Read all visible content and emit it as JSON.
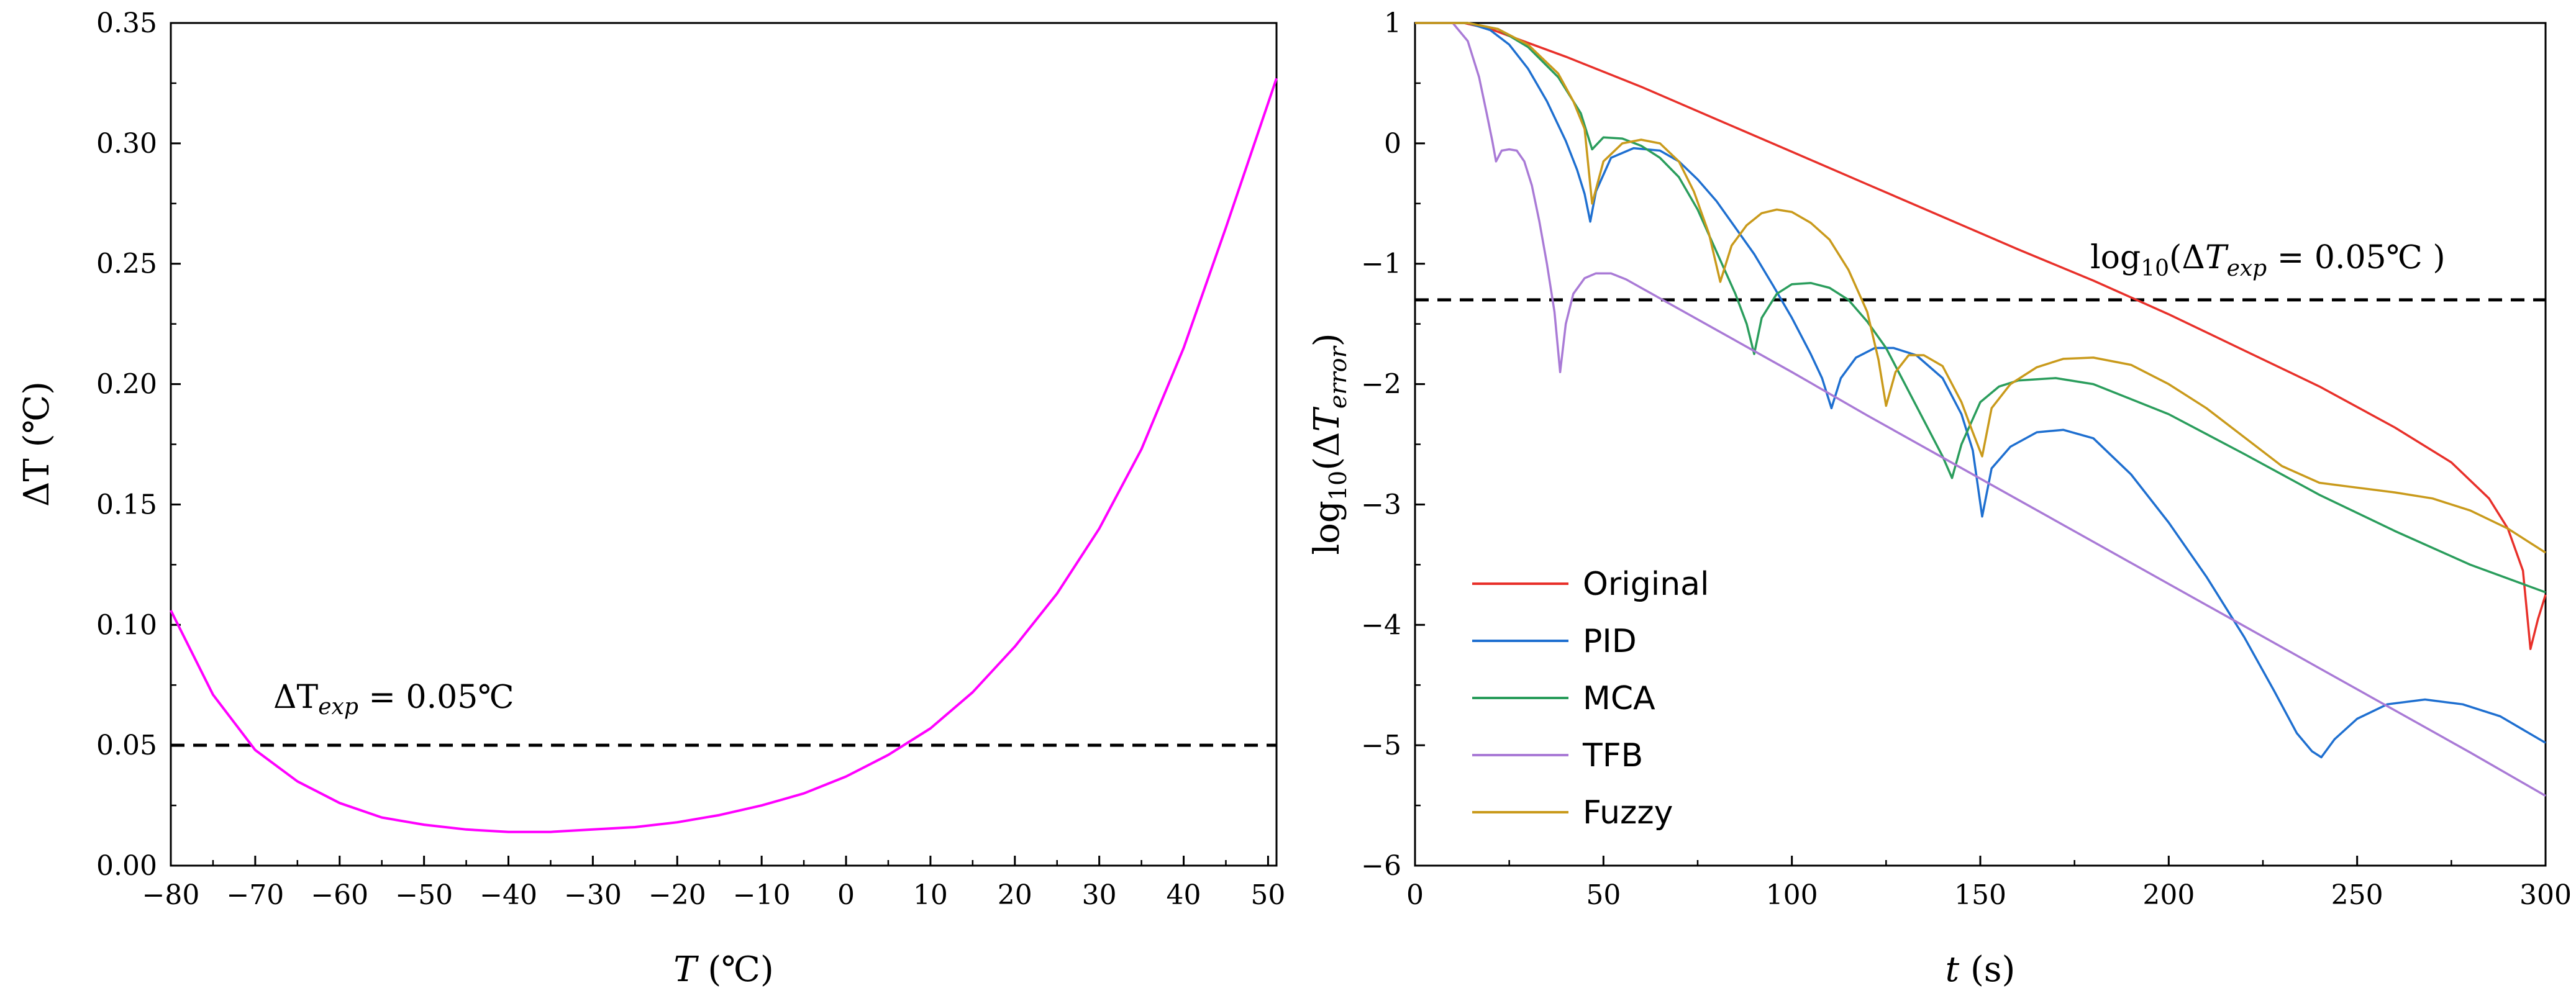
{
  "chart_data": [
    {
      "type": "line",
      "xlabel": {
        "var": "T",
        "unit": "(℃)"
      },
      "ylabel": {
        "var": "ΔT",
        "unit": "(℃)"
      },
      "xlim": [
        -80,
        51
      ],
      "ylim": [
        0,
        0.35
      ],
      "xticks": [
        -80,
        -70,
        -60,
        -50,
        -40,
        -30,
        -20,
        -10,
        0,
        10,
        20,
        30,
        40,
        50
      ],
      "xtick_labels": [
        "−80",
        "−70",
        "−60",
        "−50",
        "−40",
        "−30",
        "−20",
        "−10",
        "0",
        "10",
        "20",
        "30",
        "40",
        "50"
      ],
      "yticks": [
        0,
        0.05,
        0.1,
        0.15,
        0.2,
        0.25,
        0.3,
        0.35
      ],
      "ytick_labels": [
        "0.00",
        "0.05",
        "0.10",
        "0.15",
        "0.20",
        "0.25",
        "0.30",
        "0.35"
      ],
      "series": [
        {
          "name": "ΔT",
          "color": "#ff00ff",
          "x": [
            -80,
            -75,
            -70,
            -65,
            -60,
            -55,
            -50,
            -45,
            -40,
            -35,
            -30,
            -25,
            -20,
            -15,
            -10,
            -5,
            0,
            5,
            10,
            15,
            20,
            25,
            30,
            35,
            40,
            45,
            51
          ],
          "y": [
            0.106,
            0.071,
            0.048,
            0.035,
            0.026,
            0.02,
            0.017,
            0.015,
            0.014,
            0.014,
            0.015,
            0.016,
            0.018,
            0.021,
            0.025,
            0.03,
            0.037,
            0.046,
            0.057,
            0.072,
            0.091,
            0.113,
            0.14,
            0.173,
            0.215,
            0.265,
            0.327
          ]
        }
      ],
      "hlines": [
        {
          "y": 0.05,
          "color": "#000000",
          "style": "dashed"
        }
      ],
      "annotation": {
        "prefix": "ΔT",
        "sub": "exp",
        "suffix": " = 0.05℃"
      }
    },
    {
      "type": "line",
      "xlabel": {
        "var": "t",
        "unit": "(s)"
      },
      "ylabel": {
        "prefix": "log",
        "sub": "10",
        "open": "(Δ",
        "var": "T",
        "varsub": "error",
        "close": ")"
      },
      "xlim": [
        0,
        300
      ],
      "ylim": [
        -6,
        1
      ],
      "xticks": [
        0,
        50,
        100,
        150,
        200,
        250,
        300
      ],
      "xtick_labels": [
        "0",
        "50",
        "100",
        "150",
        "200",
        "250",
        "300"
      ],
      "yticks": [
        1,
        0,
        -1,
        -2,
        -3,
        -4,
        -5,
        -6
      ],
      "ytick_labels": [
        "1",
        "0",
        "−1",
        "−2",
        "−3",
        "−4",
        "−5",
        "−6"
      ],
      "series": [
        {
          "name": "Original",
          "color": "#e8302a",
          "x": [
            0,
            13,
            20,
            40,
            60,
            80,
            100,
            120,
            140,
            160,
            180,
            200,
            220,
            240,
            260,
            275,
            285,
            290,
            294,
            296,
            298,
            300
          ],
          "y": [
            1,
            1,
            0.95,
            0.72,
            0.47,
            0.2,
            -0.07,
            -0.34,
            -0.61,
            -0.88,
            -1.14,
            -1.42,
            -1.72,
            -2.02,
            -2.36,
            -2.65,
            -2.95,
            -3.2,
            -3.55,
            -4.2,
            -3.95,
            -3.75
          ]
        },
        {
          "name": "PID",
          "color": "#1e6fd0",
          "x": [
            0,
            14,
            20,
            25,
            30,
            35,
            40,
            43,
            45,
            46.5,
            48,
            52,
            58,
            65,
            70,
            75,
            80,
            85,
            90,
            95,
            100,
            105,
            108,
            110.5,
            113,
            117,
            122,
            127,
            133,
            140,
            145,
            148,
            150.5,
            153,
            158,
            165,
            172,
            180,
            190,
            200,
            210,
            220,
            228,
            234,
            238,
            240.5,
            244,
            250,
            258,
            268,
            278,
            288,
            300
          ],
          "y": [
            1,
            1,
            0.94,
            0.82,
            0.62,
            0.35,
            0.02,
            -0.22,
            -0.42,
            -0.65,
            -0.4,
            -0.12,
            -0.04,
            -0.06,
            -0.15,
            -0.3,
            -0.48,
            -0.7,
            -0.92,
            -1.18,
            -1.45,
            -1.75,
            -1.95,
            -2.2,
            -1.95,
            -1.78,
            -1.7,
            -1.7,
            -1.76,
            -1.95,
            -2.25,
            -2.55,
            -3.1,
            -2.7,
            -2.52,
            -2.4,
            -2.38,
            -2.45,
            -2.75,
            -3.15,
            -3.6,
            -4.1,
            -4.55,
            -4.9,
            -5.05,
            -5.1,
            -4.95,
            -4.78,
            -4.66,
            -4.62,
            -4.66,
            -4.76,
            -4.98
          ]
        },
        {
          "name": "MCA",
          "color": "#2a9d5c",
          "x": [
            0,
            14,
            22,
            30,
            38,
            44,
            47,
            50,
            55,
            60,
            65,
            70,
            75,
            80,
            85,
            88,
            90,
            92,
            96,
            100,
            105,
            110,
            115,
            120,
            125,
            130,
            135,
            140,
            142.5,
            145,
            150,
            155,
            160,
            170,
            180,
            200,
            220,
            240,
            260,
            280,
            300
          ],
          "y": [
            1,
            1,
            0.95,
            0.8,
            0.55,
            0.25,
            -0.05,
            0.05,
            0.04,
            -0.02,
            -0.12,
            -0.28,
            -0.55,
            -0.9,
            -1.25,
            -1.5,
            -1.75,
            -1.45,
            -1.25,
            -1.17,
            -1.16,
            -1.2,
            -1.3,
            -1.48,
            -1.7,
            -2.0,
            -2.3,
            -2.6,
            -2.78,
            -2.5,
            -2.15,
            -2.02,
            -1.97,
            -1.95,
            -2.0,
            -2.25,
            -2.58,
            -2.92,
            -3.22,
            -3.5,
            -3.73
          ]
        },
        {
          "name": "TFB",
          "color": "#a97ad6",
          "x": [
            0,
            10,
            14,
            17,
            19,
            20.5,
            21.5,
            23,
            25,
            27,
            29,
            31,
            33,
            35,
            37,
            38.5,
            40,
            42,
            45,
            48,
            52,
            56,
            60,
            80,
            100,
            120,
            140,
            160,
            180,
            200,
            220,
            240,
            260,
            280,
            300
          ],
          "y": [
            1,
            1,
            0.85,
            0.55,
            0.25,
            0.02,
            -0.15,
            -0.06,
            -0.05,
            -0.06,
            -0.15,
            -0.35,
            -0.65,
            -1.0,
            -1.4,
            -1.9,
            -1.5,
            -1.25,
            -1.12,
            -1.08,
            -1.08,
            -1.13,
            -1.2,
            -1.55,
            -1.9,
            -2.26,
            -2.61,
            -2.96,
            -3.31,
            -3.66,
            -4.01,
            -4.36,
            -4.71,
            -5.06,
            -5.42
          ]
        },
        {
          "name": "Fuzzy",
          "color": "#c99a1b",
          "x": [
            0,
            14,
            22,
            30,
            38,
            42,
            45,
            47,
            50,
            55,
            60,
            65,
            70,
            74,
            78,
            81,
            84,
            88,
            92,
            96,
            100,
            105,
            110,
            115,
            120,
            123,
            125,
            127.5,
            131,
            135,
            140,
            145,
            148,
            150.5,
            153,
            158,
            165,
            172,
            180,
            190,
            200,
            210,
            220,
            230,
            240,
            250,
            260,
            270,
            280,
            290,
            300
          ],
          "y": [
            1,
            1,
            0.95,
            0.82,
            0.58,
            0.35,
            0.12,
            -0.5,
            -0.15,
            0.0,
            0.03,
            0.0,
            -0.15,
            -0.4,
            -0.75,
            -1.15,
            -0.85,
            -0.68,
            -0.58,
            -0.55,
            -0.57,
            -0.66,
            -0.8,
            -1.05,
            -1.4,
            -1.8,
            -2.18,
            -1.9,
            -1.76,
            -1.76,
            -1.85,
            -2.15,
            -2.4,
            -2.6,
            -2.2,
            -2.0,
            -1.86,
            -1.79,
            -1.78,
            -1.84,
            -2.0,
            -2.2,
            -2.44,
            -2.68,
            -2.82,
            -2.86,
            -2.9,
            -2.95,
            -3.05,
            -3.2,
            -3.4
          ]
        }
      ],
      "hlines": [
        {
          "y": -1.3,
          "color": "#000000",
          "style": "dashed"
        }
      ],
      "annotation": {
        "prefix": "log",
        "sub": "10",
        "open": "(Δ",
        "var": "T",
        "varsub": "exp",
        "suffix": " = 0.05℃ )"
      },
      "legend": {
        "position": "lower-left",
        "entries": [
          "Original",
          "PID",
          "MCA",
          "TFB",
          "Fuzzy"
        ]
      }
    }
  ]
}
